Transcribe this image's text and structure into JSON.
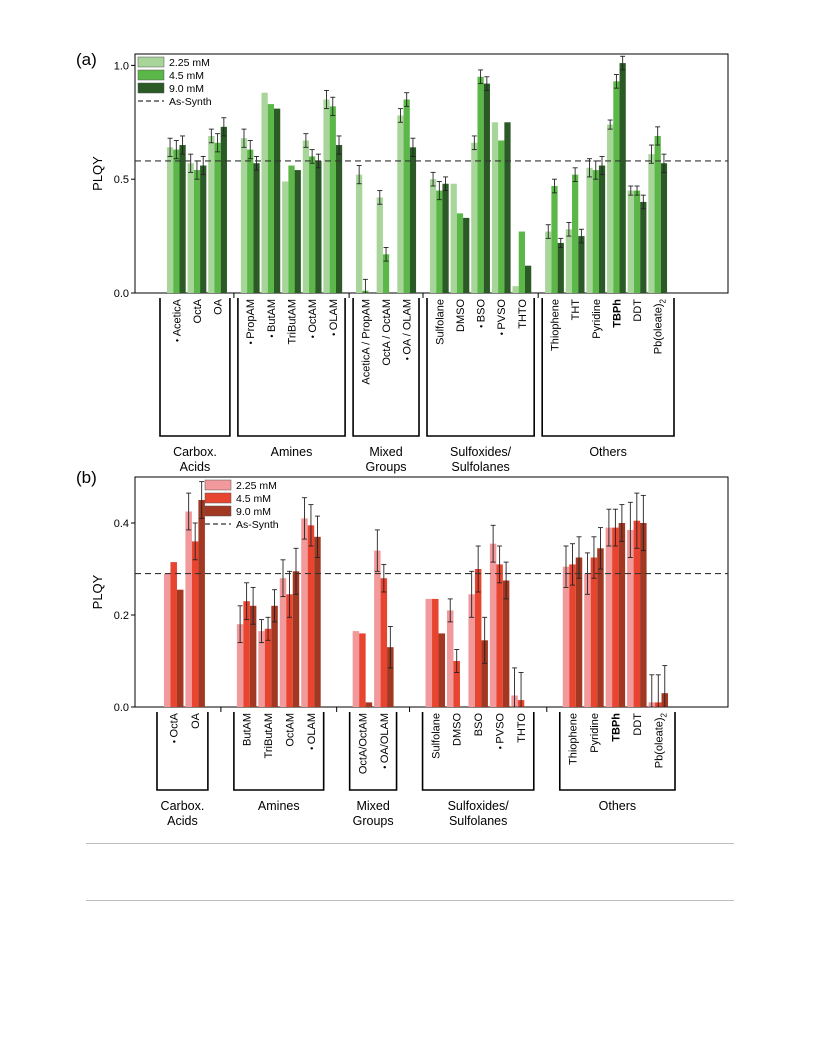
{
  "panels": [
    {
      "label": "(a)",
      "ylabel": "PLQY",
      "ylim": [
        0,
        1.05
      ],
      "yticks": [
        "0.0",
        "0.5",
        "1.0"
      ],
      "ytick_values": [
        0,
        0.5,
        1.0
      ],
      "reference": 0.58,
      "colors": [
        "#a8d69a",
        "#5bb848",
        "#2b5a26"
      ],
      "legend": {
        "entries": [
          "2.25 mM",
          "4.5 mM",
          "9.0 mM"
        ],
        "reference_label": "As-Synth",
        "placement": "top-left"
      },
      "chart_data": {
        "type": "bar",
        "ylabel": "PLQY",
        "series_names": [
          "2.25 mM",
          "4.5 mM",
          "9.0 mM"
        ],
        "categories": [
          {
            "name": "AceticA",
            "star": true,
            "bold": false,
            "values": [
              0.64,
              0.63,
              0.65
            ],
            "err": [
              0.04,
              0.04,
              0.04
            ]
          },
          {
            "name": "OctA",
            "star": false,
            "bold": false,
            "values": [
              0.57,
              0.54,
              0.56
            ],
            "err": [
              0.04,
              0.04,
              0.04
            ]
          },
          {
            "name": "OA",
            "star": false,
            "bold": false,
            "values": [
              0.69,
              0.66,
              0.73
            ],
            "err": [
              0.03,
              0.04,
              0.04
            ]
          },
          {
            "name": "PropAM",
            "star": true,
            "bold": false,
            "values": [
              0.68,
              0.63,
              0.57
            ],
            "err": [
              0.04,
              0.04,
              0.03
            ]
          },
          {
            "name": "ButAM",
            "star": true,
            "bold": false,
            "values": [
              0.88,
              0.83,
              0.81
            ],
            "err": [
              null,
              null,
              null
            ]
          },
          {
            "name": "TriButAM",
            "star": false,
            "bold": false,
            "values": [
              0.49,
              0.56,
              0.54
            ],
            "err": [
              null,
              null,
              null
            ]
          },
          {
            "name": "OctAM",
            "star": true,
            "bold": false,
            "values": [
              0.67,
              0.6,
              0.58
            ],
            "err": [
              0.03,
              0.03,
              0.03
            ]
          },
          {
            "name": "OLAM",
            "star": true,
            "bold": false,
            "values": [
              0.85,
              0.82,
              0.65
            ],
            "err": [
              0.04,
              0.04,
              0.04
            ]
          },
          {
            "name": "AceticA / PropAM",
            "star": false,
            "bold": false,
            "values": [
              0.52,
              0.01,
              null
            ],
            "err": [
              0.04,
              0.05,
              null
            ]
          },
          {
            "name": "OctA / OctAM",
            "star": false,
            "bold": false,
            "values": [
              0.42,
              0.17,
              null
            ],
            "err": [
              0.03,
              0.03,
              null
            ]
          },
          {
            "name": "OA / OLAM",
            "star": true,
            "bold": false,
            "values": [
              0.78,
              0.85,
              0.64
            ],
            "err": [
              0.03,
              0.03,
              0.04
            ]
          },
          {
            "name": "Sulfolane",
            "star": false,
            "bold": false,
            "values": [
              0.5,
              0.45,
              0.48
            ],
            "err": [
              0.03,
              0.04,
              0.03
            ]
          },
          {
            "name": "DMSO",
            "star": false,
            "bold": false,
            "values": [
              0.48,
              0.35,
              0.33
            ],
            "err": [
              null,
              null,
              null
            ]
          },
          {
            "name": "BSO",
            "star": true,
            "bold": false,
            "values": [
              0.66,
              0.95,
              0.92
            ],
            "err": [
              0.03,
              0.03,
              0.03
            ]
          },
          {
            "name": "PVSO",
            "star": true,
            "bold": false,
            "values": [
              0.75,
              0.67,
              0.75
            ],
            "err": [
              null,
              null,
              null
            ]
          },
          {
            "name": "THTO",
            "star": false,
            "bold": false,
            "values": [
              0.03,
              0.27,
              0.12
            ],
            "err": [
              null,
              null,
              null
            ]
          },
          {
            "name": "Thiophene",
            "star": false,
            "bold": false,
            "values": [
              0.27,
              0.47,
              0.22
            ],
            "err": [
              0.03,
              0.03,
              0.02
            ]
          },
          {
            "name": "THT",
            "star": false,
            "bold": false,
            "values": [
              0.28,
              0.52,
              0.25
            ],
            "err": [
              0.03,
              0.03,
              0.03
            ]
          },
          {
            "name": "Pyridine",
            "star": false,
            "bold": false,
            "values": [
              0.55,
              0.54,
              0.56
            ],
            "err": [
              0.04,
              0.04,
              0.04
            ]
          },
          {
            "name": "TBPh",
            "star": false,
            "bold": true,
            "values": [
              0.74,
              0.93,
              1.01
            ],
            "err": [
              0.02,
              0.03,
              0.03
            ]
          },
          {
            "name": "DDT",
            "star": false,
            "bold": false,
            "values": [
              0.45,
              0.45,
              0.4
            ],
            "err": [
              0.02,
              0.02,
              0.03
            ]
          },
          {
            "name": "Pb(oleate)",
            "sub": "2",
            "star": false,
            "bold": false,
            "values": [
              0.61,
              0.69,
              0.57
            ],
            "err": [
              0.04,
              0.04,
              0.04
            ]
          }
        ],
        "groups": [
          {
            "label": "Carbox.\nAcids",
            "first": 0,
            "last": 2
          },
          {
            "label": "Amines",
            "first": 3,
            "last": 7
          },
          {
            "label": "Mixed\nGroups",
            "first": 8,
            "last": 10
          },
          {
            "label": "Sulfoxides/\nSulfolanes",
            "first": 11,
            "last": 15
          },
          {
            "label": "Others",
            "first": 16,
            "last": 21
          }
        ]
      }
    },
    {
      "label": "(b)",
      "ylabel": "PLQY",
      "ylim": [
        0,
        0.5
      ],
      "yticks": [
        "0.0",
        "0.2",
        "0.4"
      ],
      "ytick_values": [
        0,
        0.2,
        0.4
      ],
      "reference": 0.29,
      "colors": [
        "#f2999c",
        "#e84530",
        "#a23722"
      ],
      "legend": {
        "entries": [
          "2.25 mM",
          "4.5 mM",
          "9.0 mM"
        ],
        "reference_label": "As-Synth",
        "placement": "top-left"
      },
      "chart_data": {
        "type": "bar",
        "ylabel": "PLQY",
        "series_names": [
          "2.25 mM",
          "4.5 mM",
          "9.0 mM"
        ],
        "categories": [
          {
            "name": "OctA",
            "star": true,
            "bold": false,
            "values": [
              0.29,
              0.315,
              0.255
            ],
            "err": [
              null,
              null,
              null
            ]
          },
          {
            "name": "OA",
            "star": false,
            "bold": false,
            "values": [
              0.425,
              0.36,
              0.45
            ],
            "err": [
              0.04,
              0.04,
              0.04
            ]
          },
          {
            "name": "ButAM",
            "star": false,
            "bold": false,
            "values": [
              0.18,
              0.23,
              0.22
            ],
            "err": [
              0.04,
              0.04,
              0.04
            ]
          },
          {
            "name": "TriButAM",
            "star": false,
            "bold": false,
            "values": [
              0.165,
              0.17,
              0.22
            ],
            "err": [
              0.025,
              0.025,
              0.035
            ]
          },
          {
            "name": "OctAM",
            "star": false,
            "bold": false,
            "values": [
              0.28,
              0.245,
              0.295
            ],
            "err": [
              0.04,
              0.05,
              0.05
            ]
          },
          {
            "name": "OLAM",
            "star": true,
            "bold": false,
            "values": [
              0.41,
              0.395,
              0.37
            ],
            "err": [
              0.045,
              0.045,
              0.045
            ]
          },
          {
            "name": "OctA/OctAM",
            "star": false,
            "bold": false,
            "values": [
              0.165,
              0.16,
              0.01
            ],
            "err": [
              null,
              null,
              null
            ]
          },
          {
            "name": "OA/OLAM",
            "star": true,
            "bold": false,
            "values": [
              0.34,
              0.28,
              0.13
            ],
            "err": [
              0.045,
              0.03,
              0.045
            ]
          },
          {
            "name": "Sulfolane",
            "star": false,
            "bold": false,
            "values": [
              0.235,
              0.235,
              0.16
            ],
            "err": [
              null,
              null,
              null
            ]
          },
          {
            "name": "DMSO",
            "star": false,
            "bold": false,
            "values": [
              0.21,
              0.1,
              null
            ],
            "err": [
              0.025,
              0.025,
              null
            ]
          },
          {
            "name": "BSO",
            "star": false,
            "bold": false,
            "values": [
              0.245,
              0.3,
              0.145
            ],
            "err": [
              0.05,
              0.05,
              0.05
            ]
          },
          {
            "name": "PVSO",
            "star": true,
            "bold": false,
            "values": [
              0.355,
              0.31,
              0.275
            ],
            "err": [
              0.04,
              0.04,
              0.04
            ]
          },
          {
            "name": "THTO",
            "star": false,
            "bold": false,
            "values": [
              0.025,
              0.015,
              null
            ],
            "err": [
              0.06,
              0.06,
              null
            ]
          },
          {
            "name": "Thiophene",
            "star": false,
            "bold": false,
            "values": [
              0.305,
              0.31,
              0.325
            ],
            "err": [
              0.045,
              0.045,
              0.045
            ]
          },
          {
            "name": "Pyridine",
            "star": false,
            "bold": false,
            "values": [
              0.29,
              0.325,
              0.345
            ],
            "err": [
              0.045,
              0.045,
              0.045
            ]
          },
          {
            "name": "TBPh",
            "star": false,
            "bold": true,
            "values": [
              0.39,
              0.39,
              0.4
            ],
            "err": [
              0.04,
              0.04,
              0.04
            ]
          },
          {
            "name": "DDT",
            "star": false,
            "bold": false,
            "values": [
              0.385,
              0.405,
              0.4
            ],
            "err": [
              0.06,
              0.06,
              0.06
            ]
          },
          {
            "name": "Pb(oleate)",
            "sub": "2",
            "star": false,
            "bold": false,
            "values": [
              0.01,
              0.01,
              0.03
            ],
            "err": [
              0.06,
              0.06,
              0.06
            ]
          }
        ],
        "groups": [
          {
            "label": "Carbox.\nAcids",
            "first": 0,
            "last": 1
          },
          {
            "label": "Amines",
            "first": 2,
            "last": 5
          },
          {
            "label": "Mixed\nGroups",
            "first": 6,
            "last": 7
          },
          {
            "label": "Sulfoxides/\nSulfolanes",
            "first": 8,
            "last": 12
          },
          {
            "label": "Others",
            "first": 13,
            "last": 17
          }
        ]
      }
    }
  ]
}
